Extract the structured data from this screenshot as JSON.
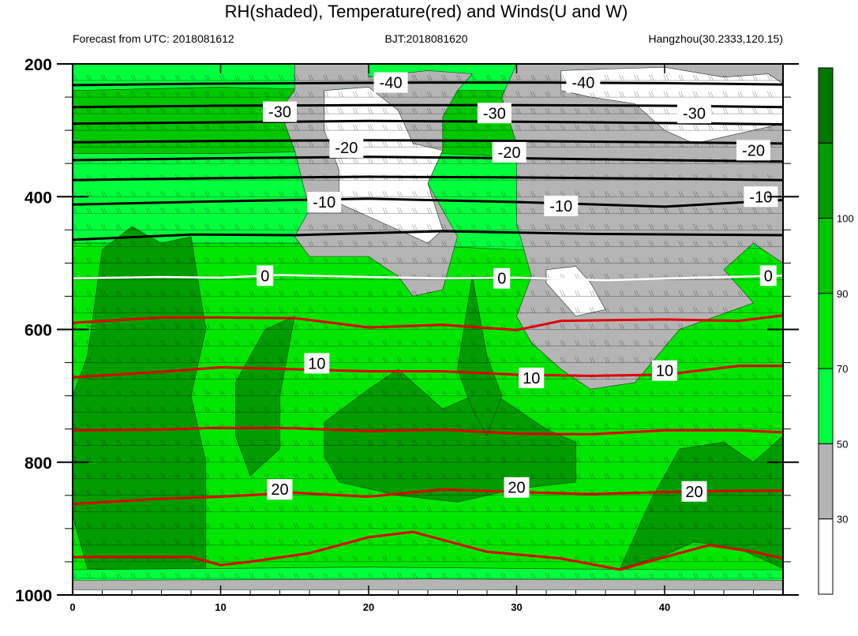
{
  "chart_data": {
    "type": "contour",
    "title": "RH(shaded), Temperature(red) and Winds(U and W)",
    "subtitle_left": "Forecast from UTC: 2018081612",
    "subtitle_center": "BJT:2018081620",
    "subtitle_right": "Hangzhou(30.2333,120.15)",
    "x_range": [
      0,
      48
    ],
    "x_ticks": [
      0,
      10,
      20,
      30,
      40
    ],
    "y_range": [
      200,
      1000
    ],
    "y_inverted": true,
    "y_ticks": [
      200,
      400,
      600,
      800,
      1000
    ],
    "colorbar": {
      "levels": [
        30,
        50,
        70,
        90,
        100
      ],
      "colors": [
        "#ffffff",
        "#b4b4b4",
        "#00ff3c",
        "#00e600",
        "#00c800",
        "#009c00",
        "#007800"
      ]
    },
    "isotherms": [
      {
        "value": -40,
        "color": "#000000",
        "label_positions": [
          {
            "x": 21.5,
            "level": 228
          },
          {
            "x": 34.5,
            "level": 228
          }
        ],
        "points": [
          [
            0,
            232
          ],
          [
            8,
            230
          ],
          [
            16,
            229
          ],
          [
            24,
            228
          ],
          [
            32,
            228
          ],
          [
            40,
            229
          ],
          [
            48,
            231
          ]
        ]
      },
      {
        "value": -35,
        "color": "#000000",
        "label_positions": [],
        "points": [
          [
            0,
            265
          ],
          [
            10,
            263
          ],
          [
            20,
            262
          ],
          [
            30,
            262
          ],
          [
            40,
            263
          ],
          [
            48,
            265
          ]
        ]
      },
      {
        "value": -30,
        "color": "#000000",
        "label_positions": [
          {
            "x": 14,
            "level": 272
          },
          {
            "x": 28.5,
            "level": 274
          },
          {
            "x": 42,
            "level": 274
          }
        ],
        "points": [
          [
            0,
            290
          ],
          [
            10,
            288
          ],
          [
            20,
            286
          ],
          [
            30,
            287
          ],
          [
            40,
            289
          ],
          [
            48,
            291
          ]
        ]
      },
      {
        "value": -25,
        "color": "#000000",
        "label_positions": [],
        "points": [
          [
            0,
            318
          ],
          [
            10,
            316
          ],
          [
            20,
            315
          ],
          [
            30,
            316
          ],
          [
            40,
            318
          ],
          [
            48,
            320
          ]
        ]
      },
      {
        "value": -20,
        "color": "#000000",
        "label_positions": [
          {
            "x": 18.5,
            "level": 326
          },
          {
            "x": 29.5,
            "level": 333
          },
          {
            "x": 46,
            "level": 330
          }
        ],
        "points": [
          [
            0,
            345
          ],
          [
            10,
            342
          ],
          [
            20,
            340
          ],
          [
            30,
            342
          ],
          [
            40,
            345
          ],
          [
            48,
            347
          ]
        ]
      },
      {
        "value": -15,
        "color": "#000000",
        "label_positions": [],
        "points": [
          [
            0,
            375
          ],
          [
            10,
            372
          ],
          [
            20,
            370
          ],
          [
            30,
            371
          ],
          [
            40,
            373
          ],
          [
            48,
            375
          ]
        ]
      },
      {
        "value": -10,
        "color": "#000000",
        "label_positions": [
          {
            "x": 17,
            "level": 408
          },
          {
            "x": 33,
            "level": 414
          },
          {
            "x": 46.5,
            "level": 400
          }
        ],
        "points": [
          [
            0,
            412
          ],
          [
            10,
            407
          ],
          [
            20,
            403
          ],
          [
            30,
            408
          ],
          [
            40,
            415
          ],
          [
            48,
            405
          ]
        ]
      },
      {
        "value": -5,
        "color": "#000000",
        "label_positions": [],
        "points": [
          [
            0,
            465
          ],
          [
            8,
            457
          ],
          [
            15,
            458
          ],
          [
            25,
            452
          ],
          [
            35,
            456
          ],
          [
            48,
            458
          ]
        ]
      },
      {
        "value": 0,
        "color": "#ffffff",
        "label_positions": [
          {
            "x": 13,
            "level": 519
          },
          {
            "x": 29,
            "level": 523
          },
          {
            "x": 47,
            "level": 519
          }
        ],
        "points": [
          [
            0,
            523
          ],
          [
            6,
            521
          ],
          [
            10,
            522
          ],
          [
            14,
            518
          ],
          [
            20,
            521
          ],
          [
            25,
            523
          ],
          [
            30,
            522
          ],
          [
            36,
            526
          ],
          [
            42,
            522
          ],
          [
            48,
            519
          ]
        ]
      },
      {
        "value": 5,
        "color": "#e00000",
        "label_positions": [],
        "points": [
          [
            0,
            590
          ],
          [
            6,
            582
          ],
          [
            10,
            582
          ],
          [
            15,
            583
          ],
          [
            20,
            597
          ],
          [
            25,
            593
          ],
          [
            30,
            601
          ],
          [
            33,
            587
          ],
          [
            40,
            585
          ],
          [
            45,
            587
          ],
          [
            48,
            579
          ]
        ]
      },
      {
        "value": 10,
        "color": "#e00000",
        "label_positions": [
          {
            "x": 16.5,
            "level": 651
          },
          {
            "x": 31,
            "level": 673
          },
          {
            "x": 40,
            "level": 662
          }
        ],
        "points": [
          [
            0,
            672
          ],
          [
            6,
            664
          ],
          [
            10,
            657
          ],
          [
            15,
            660
          ],
          [
            20,
            663
          ],
          [
            25,
            663
          ],
          [
            30,
            668
          ],
          [
            35,
            670
          ],
          [
            40,
            668
          ],
          [
            45,
            655
          ],
          [
            48,
            655
          ]
        ]
      },
      {
        "value": 15,
        "color": "#e00000",
        "label_positions": [],
        "points": [
          [
            0,
            752
          ],
          [
            6,
            751
          ],
          [
            10,
            748
          ],
          [
            15,
            749
          ],
          [
            20,
            753
          ],
          [
            25,
            751
          ],
          [
            30,
            757
          ],
          [
            35,
            758
          ],
          [
            40,
            752
          ],
          [
            45,
            752
          ],
          [
            48,
            755
          ]
        ]
      },
      {
        "value": 20,
        "color": "#e00000",
        "label_positions": [
          {
            "x": 14,
            "level": 841
          },
          {
            "x": 30,
            "level": 838
          },
          {
            "x": 42,
            "level": 844
          }
        ],
        "points": [
          [
            0,
            863
          ],
          [
            6,
            855
          ],
          [
            10,
            852
          ],
          [
            15,
            846
          ],
          [
            20,
            852
          ],
          [
            25,
            841
          ],
          [
            30,
            845
          ],
          [
            35,
            848
          ],
          [
            40,
            845
          ],
          [
            45,
            843
          ],
          [
            48,
            843
          ]
        ]
      },
      {
        "value": 25,
        "color": "#e00000",
        "label_positions": [],
        "points": [
          [
            0,
            943
          ],
          [
            8,
            943
          ],
          [
            10,
            955
          ],
          [
            12,
            950
          ],
          [
            16,
            937
          ],
          [
            20,
            913
          ],
          [
            23,
            905
          ],
          [
            28,
            935
          ],
          [
            33,
            945
          ],
          [
            37,
            962
          ],
          [
            40,
            943
          ],
          [
            43,
            925
          ],
          [
            46,
            935
          ],
          [
            48,
            945
          ]
        ]
      }
    ]
  }
}
